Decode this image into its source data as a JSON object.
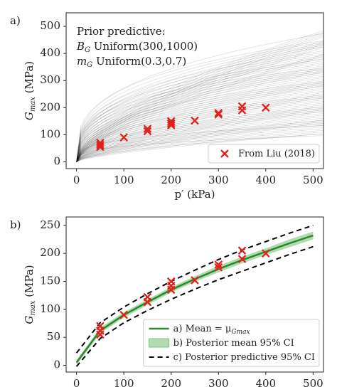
{
  "chart_data": [
    {
      "type": "scatter",
      "panel_label": "a)",
      "annotation": [
        [
          "Prior predictive:"
        ],
        [
          "B",
          "G",
          " Uniform(300,1000)"
        ],
        [
          "m",
          "G",
          " Uniform(0.3,0.7)"
        ]
      ],
      "xlabel": "p′ (kPa)",
      "ylabel": {
        "symbol": "G",
        "sub": "max",
        "unit": " (MPa)"
      },
      "xlim": [
        -22,
        522
      ],
      "xticks": [
        0,
        100,
        200,
        300,
        400,
        500
      ],
      "ylim": [
        -25,
        550
      ],
      "yticks": [
        0,
        100,
        200,
        300,
        400,
        500
      ],
      "legend": "lower right",
      "series": [
        {
          "name": "From Liu (2018)",
          "kind": "scatter",
          "color": "#e0211b",
          "x": [
            50,
            50,
            50,
            100,
            150,
            150,
            200,
            200,
            200,
            250,
            300,
            300,
            350,
            350,
            400
          ],
          "values": [
            55,
            62,
            70,
            90,
            113,
            122,
            135,
            142,
            150,
            152,
            175,
            180,
            190,
            205,
            200
          ]
        }
      ]
    },
    {
      "type": "line",
      "panel_label": "b)",
      "ylabel": {
        "symbol": "G",
        "sub": "max",
        "unit": " (MPa)"
      },
      "xlim": [
        -22,
        522
      ],
      "xticks": [
        0,
        100,
        200,
        300,
        400,
        500
      ],
      "ylim": [
        -12,
        265
      ],
      "yticks": [
        0,
        50,
        100,
        150,
        200,
        250
      ],
      "legend": "lower right",
      "series": [
        {
          "kind": "scatter",
          "color": "#e0211b",
          "x": [
            50,
            50,
            50,
            100,
            150,
            150,
            200,
            200,
            200,
            250,
            300,
            300,
            350,
            350,
            400
          ],
          "values": [
            55,
            62,
            70,
            90,
            113,
            122,
            135,
            142,
            150,
            152,
            175,
            180,
            190,
            205,
            200
          ]
        },
        {
          "name": "b) Posterior mean 95% CI",
          "kind": "band",
          "color": "#7cc47c",
          "x": [
            0,
            50,
            100,
            150,
            200,
            250,
            300,
            350,
            400,
            450,
            500
          ],
          "lower": [
            1,
            57,
            85,
            108,
            130,
            149,
            166,
            182,
            197,
            211,
            225
          ],
          "upper": [
            9,
            67,
            95,
            118,
            140,
            159,
            178,
            194,
            209,
            225,
            239
          ]
        },
        {
          "name": "a) Mean = μ",
          "name_sub": "Gmax",
          "kind": "line",
          "color": "#2a8a2a",
          "x": [
            0,
            50,
            100,
            150,
            200,
            250,
            300,
            350,
            400,
            450,
            500
          ],
          "values": [
            5,
            62,
            90,
            113,
            135,
            154,
            172,
            188,
            203,
            218,
            232
          ]
        },
        {
          "name": "c) Posterior predictive 95% CI",
          "kind": "dashed",
          "color": "#000000",
          "x": [
            0,
            50,
            100,
            150,
            200,
            250,
            300,
            350,
            400,
            450,
            500
          ],
          "lower": [
            -2,
            48,
            76,
            98,
            118,
            136,
            153,
            168,
            183,
            198,
            212
          ],
          "upper": [
            22,
            76,
            104,
            128,
            150,
            170,
            189,
            206,
            221,
            236,
            250
          ]
        }
      ]
    }
  ]
}
